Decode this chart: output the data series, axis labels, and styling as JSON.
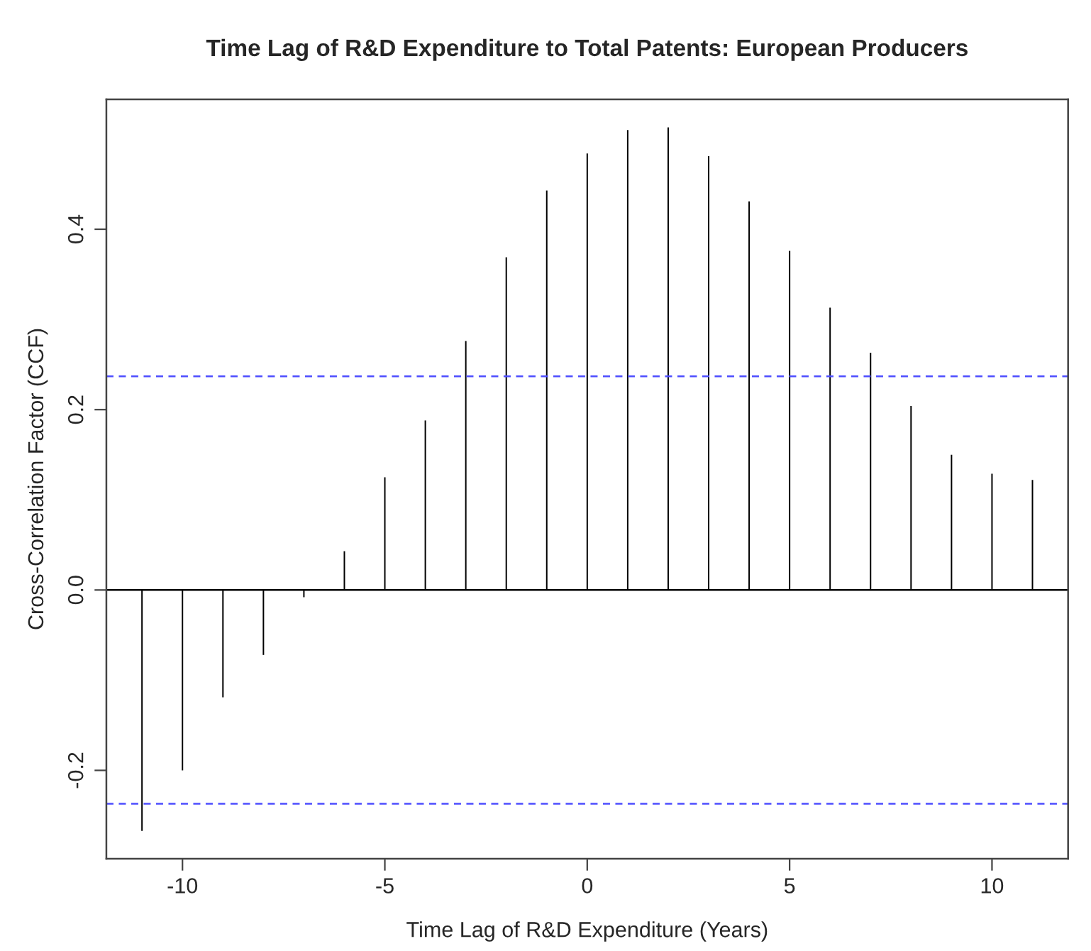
{
  "chart_data": {
    "type": "bar",
    "title": "Time Lag of R&D Expenditure to Total Patents: European Producers",
    "xlabel": "Time Lag of R&D Expenditure (Years)",
    "ylabel": "Cross-Correlation Factor (CCF)",
    "x": [
      -11,
      -10,
      -9,
      -8,
      -7,
      -6,
      -5,
      -4,
      -3,
      -2,
      -1,
      0,
      1,
      2,
      3,
      4,
      5,
      6,
      7,
      8,
      9,
      10,
      11
    ],
    "values": [
      -0.267,
      -0.2,
      -0.119,
      -0.072,
      -0.008,
      0.043,
      0.125,
      0.188,
      0.276,
      0.369,
      0.443,
      0.484,
      0.51,
      0.513,
      0.481,
      0.431,
      0.376,
      0.313,
      0.263,
      0.204,
      0.15,
      0.129,
      0.122
    ],
    "color": "#000000",
    "xlim": [
      -11.88,
      11.88
    ],
    "ylim": [
      -0.298,
      0.544
    ],
    "xticks": [
      -10,
      -5,
      0,
      5,
      10
    ],
    "yticks": [
      -0.2,
      {
        "value": 0,
        "label": "0.0"
      },
      0.2,
      0.4
    ],
    "ref_lines": [
      {
        "axis": "y",
        "value": 0,
        "color": "#000000",
        "line_style": "solid"
      },
      {
        "axis": "y",
        "value": 0.237,
        "color": "#4d4dff",
        "line_style": "dashed"
      },
      {
        "axis": "y",
        "value": -0.237,
        "color": "#4d4dff",
        "line_style": "dashed"
      }
    ],
    "grid": false
  }
}
